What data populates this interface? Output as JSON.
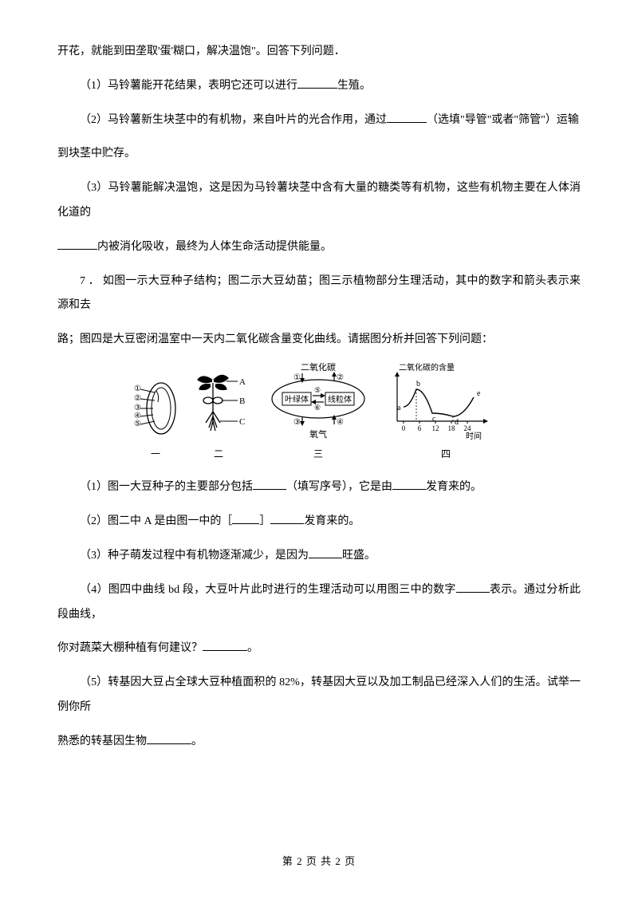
{
  "p0": "开花，就能到田垄取'蛋'糊口，解决温饱\"。回答下列问题．",
  "q1a": "（1）马铃薯能开花结果，表明它还可以进行",
  "q1b": "生殖。",
  "q2a": "（2）马铃薯新生块茎中的有机物，来自叶片的光合作用，通过",
  "q2b": "（选填\"导管\"或者\"筛管\"）运输",
  "q2c": "到块茎中贮存。",
  "q3a": "（3）马铃薯能解决温饱，这是因为马铃薯块茎中含有大量的糖类等有机物，这些有机物主要在人体消化道的",
  "q3b": "内被消化吸收，最终为人体生命活动提供能量。",
  "q7a": "7 ．  如图一示大豆种子结构；图二示大豆幼苗；图三示植物部分生理活动，其中的数字和箭头表示来源和去",
  "q7b": "路；图四是大豆密闭温室中一天内二氧化碳含量变化曲线。请据图分析并回答下列问题：",
  "s1a": "（1）图一大豆种子的主要部分包括",
  "s1b": "（填写序号），它是由",
  "s1c": "发育来的。",
  "s2a": "（2）图二中 A 是由图一中的［",
  "s2b": "］",
  "s2c": "发育来的。",
  "s3a": "（3）种子萌发过程中有机物逐渐减少，是因为",
  "s3b": "旺盛。",
  "s4a": "（4）图四中曲线 bd 段，大豆叶片此时进行的生理活动可以用图三中的数字",
  "s4b": "表示。通过分析此段曲线，",
  "s4c": "你对蔬菜大棚种植有何建议？",
  "s4d": "。",
  "s5a": "（5）转基因大豆占全球大豆种植面积的 82%，转基因大豆以及加工制品已经深入人们的生活。试举一例你所",
  "s5b": "熟悉的转基因生物",
  "s5c": "。",
  "footer": "第 2 页 共 2 页",
  "fig": {
    "label1": "一",
    "label2": "二",
    "label3": "三",
    "label4": "四",
    "co2_title": "二氧化碳",
    "co2_chart_title": "二氧化碳的含量",
    "yeluti": "叶绿体",
    "xianliti": "线粒体",
    "o2": "氧气",
    "time": "时间",
    "xticks": [
      "0",
      "6",
      "12",
      "18",
      "24"
    ],
    "curve_labels": [
      "a",
      "b",
      "c",
      "d",
      "e"
    ],
    "leaf_nums": [
      "①",
      "②",
      "③",
      "④",
      "⑤"
    ],
    "plant_labels": [
      "A",
      "B",
      "C"
    ],
    "cyc_nums": [
      "①",
      "②",
      "③",
      "④",
      "⑤",
      "⑥"
    ]
  },
  "style": {
    "stroke": "#000000",
    "grid": "#000000",
    "bg": "#ffffff",
    "font_small": 10,
    "font_tiny": 9,
    "curve_points": [
      [
        8,
        40
      ],
      [
        24,
        18
      ],
      [
        44,
        48
      ],
      [
        70,
        52
      ],
      [
        96,
        28
      ]
    ],
    "xtick_pos": [
      8,
      28,
      48,
      68,
      88
    ]
  }
}
